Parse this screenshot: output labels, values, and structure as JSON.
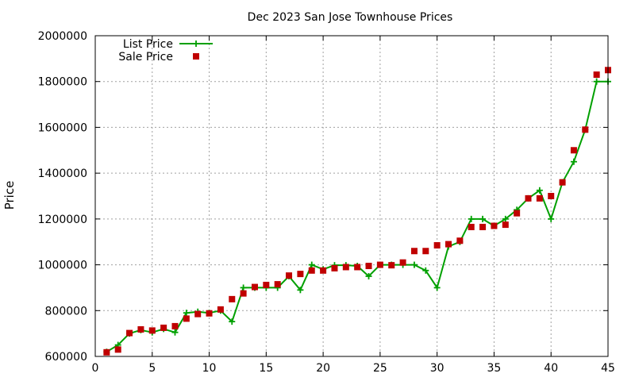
{
  "chart_data": {
    "type": "line",
    "title": "Dec 2023 San Jose Townhouse Prices",
    "xlabel": "",
    "ylabel": "Price",
    "xlim": [
      0,
      45
    ],
    "ylim": [
      600000,
      2000000
    ],
    "x_ticks": [
      0,
      5,
      10,
      15,
      20,
      25,
      30,
      35,
      40,
      45
    ],
    "y_ticks": [
      600000,
      800000,
      1000000,
      1200000,
      1400000,
      1600000,
      1800000,
      2000000
    ],
    "x_tick_labels": [
      "0",
      "5",
      "10",
      "15",
      "20",
      "25",
      "30",
      "35",
      "40",
      "45"
    ],
    "y_tick_labels": [
      "600000",
      "800000",
      "1000000",
      "1200000",
      "1400000",
      "1600000",
      "1800000",
      "2000000"
    ],
    "grid": true,
    "legend_position": "top-left",
    "x": [
      1,
      2,
      3,
      4,
      5,
      6,
      7,
      8,
      9,
      10,
      11,
      12,
      13,
      14,
      15,
      16,
      17,
      18,
      19,
      20,
      21,
      22,
      23,
      24,
      25,
      26,
      27,
      28,
      29,
      30,
      31,
      32,
      33,
      34,
      35,
      36,
      37,
      38,
      39,
      40,
      41,
      42,
      43,
      44,
      45
    ],
    "series": [
      {
        "name": "List Price",
        "style": "line-plus",
        "color": "#00a000",
        "values": [
          620000,
          650000,
          700000,
          715000,
          705000,
          720000,
          705000,
          790000,
          795000,
          790000,
          800000,
          752000,
          900000,
          900000,
          900000,
          900000,
          950000,
          890000,
          1000000,
          980000,
          998000,
          998000,
          995000,
          950000,
          1000000,
          1000000,
          1000000,
          1000000,
          975000,
          900000,
          1080000,
          1100000,
          1200000,
          1200000,
          1170000,
          1200000,
          1240000,
          1290000,
          1325000,
          1200000,
          1360000,
          1450000,
          1590000,
          1800000,
          1800000
        ]
      },
      {
        "name": "Sale Price",
        "style": "square-markers",
        "color": "#c00000",
        "values": [
          618000,
          630000,
          702000,
          718000,
          713000,
          725000,
          732000,
          765000,
          785000,
          788000,
          805000,
          850000,
          875000,
          903000,
          912000,
          915000,
          953000,
          960000,
          975000,
          975000,
          985000,
          990000,
          990000,
          995000,
          1000000,
          998000,
          1010000,
          1060000,
          1060000,
          1085000,
          1090000,
          1105000,
          1165000,
          1165000,
          1170000,
          1175000,
          1225000,
          1290000,
          1290000,
          1300000,
          1360000,
          1500000,
          1590000,
          1830000,
          1850000
        ]
      }
    ]
  }
}
